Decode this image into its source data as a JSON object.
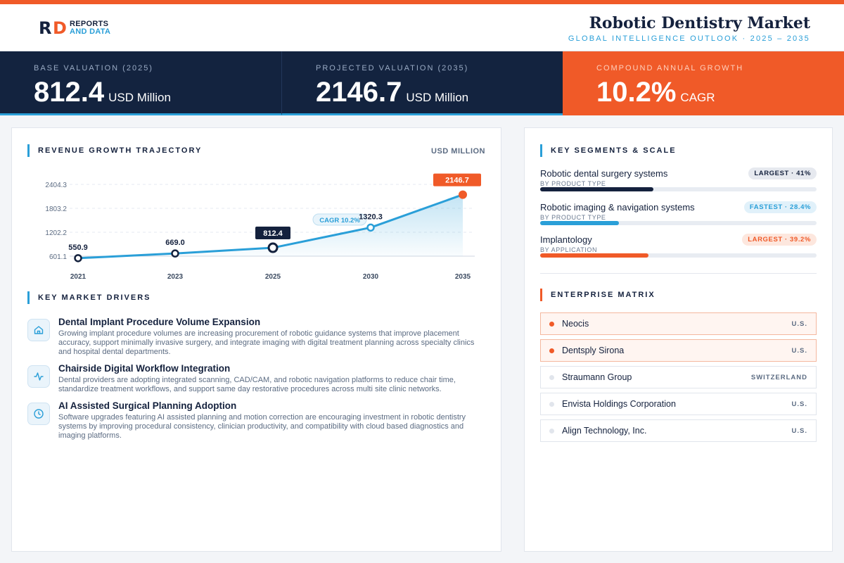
{
  "brand": {
    "line1": "REPORTS",
    "line2": "AND DATA"
  },
  "header": {
    "title": "Robotic Dentistry Market",
    "subtitle": "GLOBAL INTELLIGENCE OUTLOOK  ·  2025 – 2035"
  },
  "kpis": [
    {
      "label": "BASE VALUATION (2025)",
      "value": "812.4",
      "unit": "USD Million"
    },
    {
      "label": "PROJECTED VALUATION (2035)",
      "value": "2146.7",
      "unit": "USD Million"
    },
    {
      "label": "COMPOUND ANNUAL GROWTH",
      "value": "10.2%",
      "unit": "CAGR"
    }
  ],
  "revenue": {
    "heading": "REVENUE GROWTH TRAJECTORY",
    "unit_label": "USD MILLION",
    "cagr_label": "CAGR 10.2%"
  },
  "chart_data": {
    "type": "area",
    "x": [
      "2021",
      "2023",
      "2025",
      "2030",
      "2035"
    ],
    "values": [
      550.9,
      669.0,
      812.4,
      1320.3,
      2146.7
    ],
    "value_labels": [
      "550.9",
      "669.0",
      "812.4",
      "1320.3",
      "2146.7"
    ],
    "yticks": [
      "601.1",
      "1202.2",
      "1803.2",
      "2404.3"
    ],
    "ytick_values": [
      601.1,
      1202.2,
      1803.2,
      2404.3
    ],
    "ylim": [
      601.1,
      2404.3
    ],
    "highlight": {
      "base": "2025",
      "projected": "2035"
    },
    "grid": true,
    "colors": {
      "line": "#2a9fd8",
      "base": "#14213d",
      "projected": "#f05a28"
    }
  },
  "drivers": {
    "heading": "KEY MARKET DRIVERS",
    "items": [
      {
        "icon": "home-icon",
        "title": "Dental Implant Procedure Volume Expansion",
        "desc": "Growing implant procedure volumes are increasing procurement of robotic guidance systems that improve placement accuracy, support minimally invasive surgery, and integrate imaging with digital treatment planning across specialty clinics and hospital dental departments."
      },
      {
        "icon": "activity-icon",
        "title": "Chairside Digital Workflow Integration",
        "desc": "Dental providers are adopting integrated scanning, CAD/CAM, and robotic navigation platforms to reduce chair time, standardize treatment workflows, and support same day restorative procedures across multi site clinic networks."
      },
      {
        "icon": "clock-icon",
        "title": "AI Assisted Surgical Planning Adoption",
        "desc": "Software upgrades featuring AI assisted planning and motion correction are encouraging investment in robotic dentistry systems by improving procedural consistency, clinician productivity, and compatibility with cloud based diagnostics and imaging platforms."
      }
    ]
  },
  "segments": {
    "heading": "KEY SEGMENTS & SCALE",
    "items": [
      {
        "name": "Robotic dental surgery systems",
        "sub": "BY PRODUCT TYPE",
        "badge": "LARGEST · 41%",
        "share": 0.41,
        "color": "#14213d",
        "badge_style": "navy"
      },
      {
        "name": "Robotic imaging & navigation systems",
        "sub": "BY PRODUCT TYPE",
        "badge": "FASTEST · 28.4%",
        "share": 0.284,
        "color": "#2a9fd8",
        "badge_style": "blue"
      },
      {
        "name": "Implantology",
        "sub": "BY APPLICATION",
        "badge": "LARGEST · 39.2%",
        "share": 0.392,
        "color": "#f05a28",
        "badge_style": "orange"
      }
    ]
  },
  "enterprise": {
    "heading": "ENTERPRISE MATRIX",
    "companies": [
      {
        "name": "Neocis",
        "country": "U.S.",
        "highlight": true
      },
      {
        "name": "Dentsply Sirona",
        "country": "U.S.",
        "highlight": true
      },
      {
        "name": "Straumann Group",
        "country": "SWITZERLAND",
        "highlight": false
      },
      {
        "name": "Envista Holdings Corporation",
        "country": "U.S.",
        "highlight": false
      },
      {
        "name": "Align Technology, Inc.",
        "country": "U.S.",
        "highlight": false
      }
    ]
  }
}
